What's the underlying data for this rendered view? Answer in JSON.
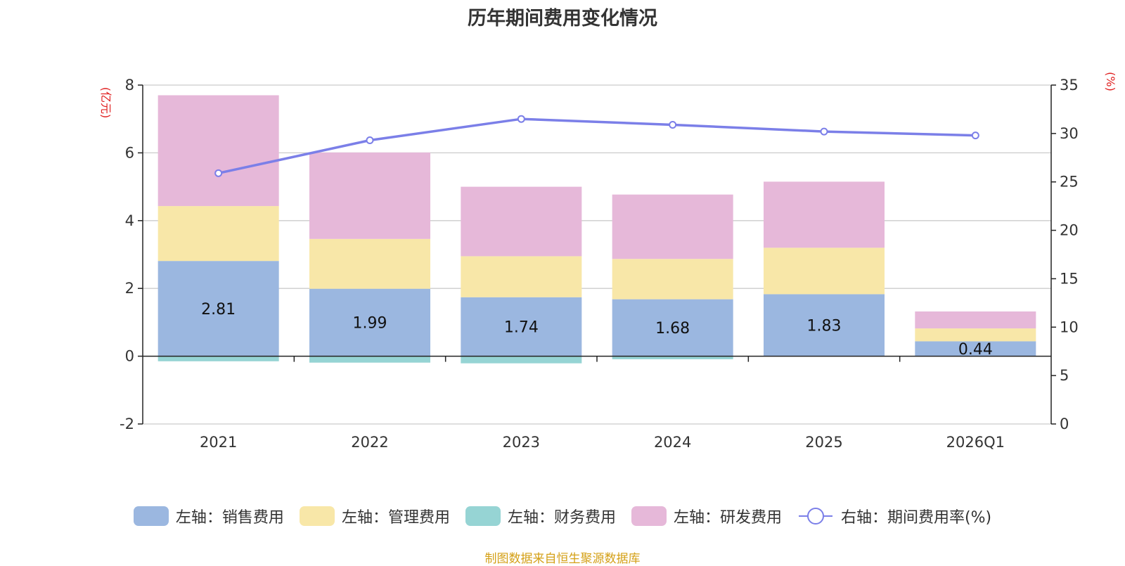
{
  "chart_data": {
    "type": "bar",
    "stacked": true,
    "title": "历年期间费用变化情况",
    "categories": [
      "2021",
      "2022",
      "2023",
      "2024",
      "2025",
      "2026Q1"
    ],
    "series": [
      {
        "name": "左轴：销售费用",
        "axis": "left",
        "color": "#9bb7e0",
        "values": [
          2.81,
          1.99,
          1.74,
          1.68,
          1.83,
          0.44
        ],
        "show_labels": true
      },
      {
        "name": "左轴：管理费用",
        "axis": "left",
        "color": "#f8e7a8",
        "values": [
          1.62,
          1.47,
          1.21,
          1.19,
          1.37,
          0.38
        ],
        "show_labels": false
      },
      {
        "name": "左轴：财务费用",
        "axis": "left",
        "color": "#96d4d4",
        "values": [
          -0.15,
          -0.19,
          -0.21,
          -0.09,
          0.0,
          0.0
        ],
        "show_labels": false
      },
      {
        "name": "左轴：研发费用",
        "axis": "left",
        "color": "#e6b8d9",
        "values": [
          3.27,
          2.55,
          2.05,
          1.9,
          1.95,
          0.5
        ],
        "show_labels": false
      }
    ],
    "line_series": {
      "name": "右轴：期间费用率(%)",
      "axis": "right",
      "color": "#7b7fe8",
      "values": [
        25.9,
        29.3,
        31.5,
        30.9,
        30.2,
        29.8
      ]
    },
    "left_axis": {
      "unit": "(亿元)",
      "ylim": [
        -2,
        8
      ],
      "ticks": [
        -2,
        0,
        2,
        4,
        6,
        8
      ]
    },
    "right_axis": {
      "unit": "(%)",
      "ylim": [
        0,
        35
      ],
      "ticks": [
        0,
        5,
        10,
        15,
        20,
        25,
        30,
        35
      ]
    },
    "grid": true,
    "legend_position": "bottom"
  },
  "source": "制图数据来自恒生聚源数据库"
}
